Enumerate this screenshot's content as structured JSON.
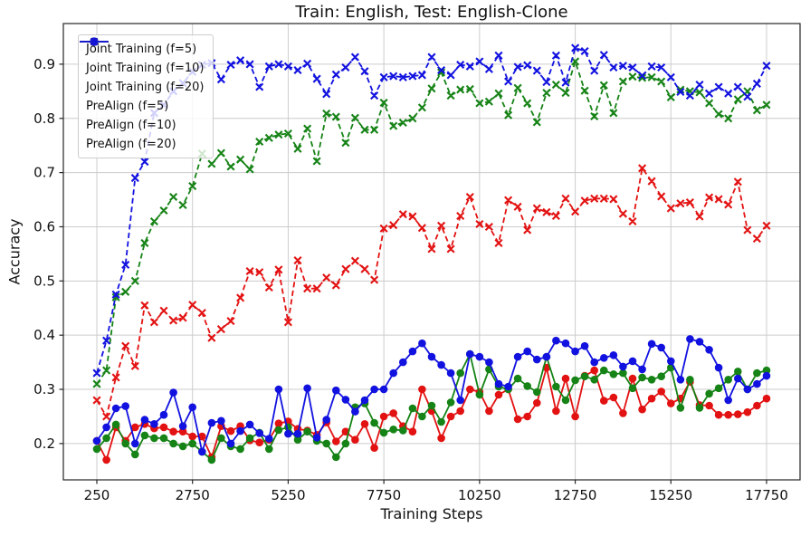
{
  "chart_data": {
    "type": "line",
    "title": "Train: English, Test: English-Clone",
    "xlabel": "Training Steps",
    "ylabel": "Accuracy",
    "grid": true,
    "legend_position": "upper left",
    "x_start": 250,
    "x_step": 250,
    "n_points": 71,
    "x_ticks": [
      "250",
      "2750",
      "5250",
      "7750",
      "10250",
      "12750",
      "15250",
      "17750"
    ],
    "x_tick_values": [
      250,
      2750,
      5250,
      7750,
      10250,
      12750,
      15250,
      17750
    ],
    "y_ticks": [
      "0.2",
      "0.3",
      "0.4",
      "0.5",
      "0.6",
      "0.7",
      "0.8",
      "0.9"
    ],
    "y_tick_values": [
      0.2,
      0.3,
      0.4,
      0.5,
      0.6,
      0.7,
      0.8,
      0.9
    ],
    "xlim": [
      -625,
      18625
    ],
    "ylim": [
      0.133,
      0.975
    ],
    "colors": {
      "red": "#e31212",
      "green": "#168316",
      "blue": "#1212e0",
      "grid": "#cccccc",
      "spine": "#262626"
    },
    "series": [
      {
        "name": "Joint Training (f=5)",
        "color": "#e31212",
        "line": "solid",
        "marker": "circle",
        "values": [
          0.205,
          0.17,
          0.23,
          0.205,
          0.23,
          0.236,
          0.228,
          0.23,
          0.222,
          0.222,
          0.213,
          0.213,
          0.175,
          0.232,
          0.223,
          0.232,
          0.206,
          0.202,
          0.207,
          0.237,
          0.241,
          0.227,
          0.224,
          0.216,
          0.239,
          0.204,
          0.222,
          0.207,
          0.236,
          0.192,
          0.25,
          0.256,
          0.232,
          0.222,
          0.3,
          0.26,
          0.21,
          0.25,
          0.26,
          0.3,
          0.295,
          0.26,
          0.29,
          0.3,
          0.245,
          0.25,
          0.275,
          0.34,
          0.26,
          0.32,
          0.25,
          0.325,
          0.335,
          0.279,
          0.285,
          0.256,
          0.32,
          0.263,
          0.283,
          0.296,
          0.274,
          0.283,
          0.314,
          0.271,
          0.27,
          0.253,
          0.253,
          0.254,
          0.258,
          0.27,
          0.283
        ]
      },
      {
        "name": "Joint Training (f=10)",
        "color": "#168316",
        "line": "solid",
        "marker": "circle",
        "values": [
          0.19,
          0.21,
          0.235,
          0.2,
          0.18,
          0.215,
          0.21,
          0.21,
          0.2,
          0.195,
          0.2,
          0.185,
          0.17,
          0.21,
          0.195,
          0.19,
          0.21,
          0.22,
          0.19,
          0.225,
          0.23,
          0.207,
          0.222,
          0.205,
          0.2,
          0.175,
          0.2,
          0.267,
          0.274,
          0.238,
          0.22,
          0.226,
          0.224,
          0.265,
          0.25,
          0.27,
          0.24,
          0.276,
          0.33,
          0.365,
          0.29,
          0.337,
          0.305,
          0.3,
          0.32,
          0.306,
          0.295,
          0.36,
          0.305,
          0.28,
          0.317,
          0.324,
          0.318,
          0.335,
          0.328,
          0.33,
          0.302,
          0.322,
          0.318,
          0.324,
          0.34,
          0.266,
          0.318,
          0.266,
          0.292,
          0.302,
          0.318,
          0.333,
          0.3,
          0.33,
          0.335
        ]
      },
      {
        "name": "Joint Training (f=20)",
        "color": "#1212e0",
        "line": "solid",
        "marker": "circle",
        "values": [
          0.205,
          0.23,
          0.265,
          0.269,
          0.2,
          0.244,
          0.236,
          0.253,
          0.294,
          0.232,
          0.267,
          0.185,
          0.238,
          0.242,
          0.2,
          0.223,
          0.235,
          0.219,
          0.209,
          0.3,
          0.218,
          0.218,
          0.302,
          0.211,
          0.244,
          0.298,
          0.281,
          0.259,
          0.28,
          0.3,
          0.3,
          0.33,
          0.35,
          0.37,
          0.385,
          0.36,
          0.345,
          0.33,
          0.28,
          0.365,
          0.36,
          0.35,
          0.31,
          0.305,
          0.36,
          0.37,
          0.355,
          0.36,
          0.39,
          0.385,
          0.37,
          0.38,
          0.35,
          0.358,
          0.363,
          0.342,
          0.352,
          0.337,
          0.384,
          0.377,
          0.352,
          0.318,
          0.393,
          0.388,
          0.373,
          0.34,
          0.28,
          0.32,
          0.3,
          0.31,
          0.325
        ]
      },
      {
        "name": "PreAlign (f=5)",
        "color": "#e31212",
        "line": "dashed",
        "marker": "x",
        "values": [
          0.28,
          0.25,
          0.322,
          0.38,
          0.343,
          0.455,
          0.424,
          0.445,
          0.427,
          0.432,
          0.456,
          0.441,
          0.395,
          0.411,
          0.426,
          0.469,
          0.518,
          0.516,
          0.488,
          0.521,
          0.424,
          0.538,
          0.486,
          0.486,
          0.506,
          0.492,
          0.522,
          0.537,
          0.522,
          0.502,
          0.597,
          0.603,
          0.623,
          0.619,
          0.598,
          0.559,
          0.602,
          0.559,
          0.62,
          0.655,
          0.605,
          0.6,
          0.57,
          0.649,
          0.637,
          0.594,
          0.634,
          0.627,
          0.62,
          0.652,
          0.628,
          0.648,
          0.652,
          0.652,
          0.651,
          0.624,
          0.61,
          0.708,
          0.684,
          0.656,
          0.634,
          0.643,
          0.645,
          0.619,
          0.654,
          0.651,
          0.641,
          0.683,
          0.594,
          0.578,
          0.602
        ]
      },
      {
        "name": "PreAlign (f=10)",
        "color": "#168316",
        "line": "dashed",
        "marker": "x",
        "values": [
          0.31,
          0.335,
          0.47,
          0.48,
          0.5,
          0.57,
          0.61,
          0.63,
          0.655,
          0.64,
          0.675,
          0.735,
          0.716,
          0.736,
          0.711,
          0.724,
          0.706,
          0.757,
          0.764,
          0.77,
          0.772,
          0.744,
          0.781,
          0.721,
          0.809,
          0.803,
          0.755,
          0.801,
          0.779,
          0.779,
          0.829,
          0.786,
          0.792,
          0.8,
          0.82,
          0.855,
          0.885,
          0.842,
          0.853,
          0.854,
          0.828,
          0.831,
          0.846,
          0.806,
          0.856,
          0.828,
          0.793,
          0.847,
          0.862,
          0.847,
          0.905,
          0.851,
          0.804,
          0.861,
          0.81,
          0.868,
          0.877,
          0.875,
          0.876,
          0.868,
          0.839,
          0.853,
          0.85,
          0.848,
          0.828,
          0.808,
          0.8,
          0.835,
          0.85,
          0.815,
          0.825
        ]
      },
      {
        "name": "PreAlign (f=20)",
        "color": "#1212e0",
        "line": "dashed",
        "marker": "x",
        "values": [
          0.33,
          0.39,
          0.475,
          0.53,
          0.69,
          0.72,
          0.81,
          0.825,
          0.85,
          0.865,
          0.886,
          0.899,
          0.902,
          0.872,
          0.899,
          0.907,
          0.9,
          0.858,
          0.896,
          0.9,
          0.896,
          0.889,
          0.901,
          0.873,
          0.845,
          0.881,
          0.894,
          0.913,
          0.887,
          0.842,
          0.876,
          0.878,
          0.876,
          0.878,
          0.88,
          0.913,
          0.889,
          0.88,
          0.899,
          0.896,
          0.905,
          0.891,
          0.916,
          0.868,
          0.895,
          0.898,
          0.888,
          0.867,
          0.916,
          0.866,
          0.93,
          0.924,
          0.888,
          0.917,
          0.894,
          0.897,
          0.894,
          0.879,
          0.896,
          0.894,
          0.876,
          0.849,
          0.842,
          0.862,
          0.846,
          0.858,
          0.846,
          0.858,
          0.84,
          0.864,
          0.897
        ]
      }
    ]
  }
}
